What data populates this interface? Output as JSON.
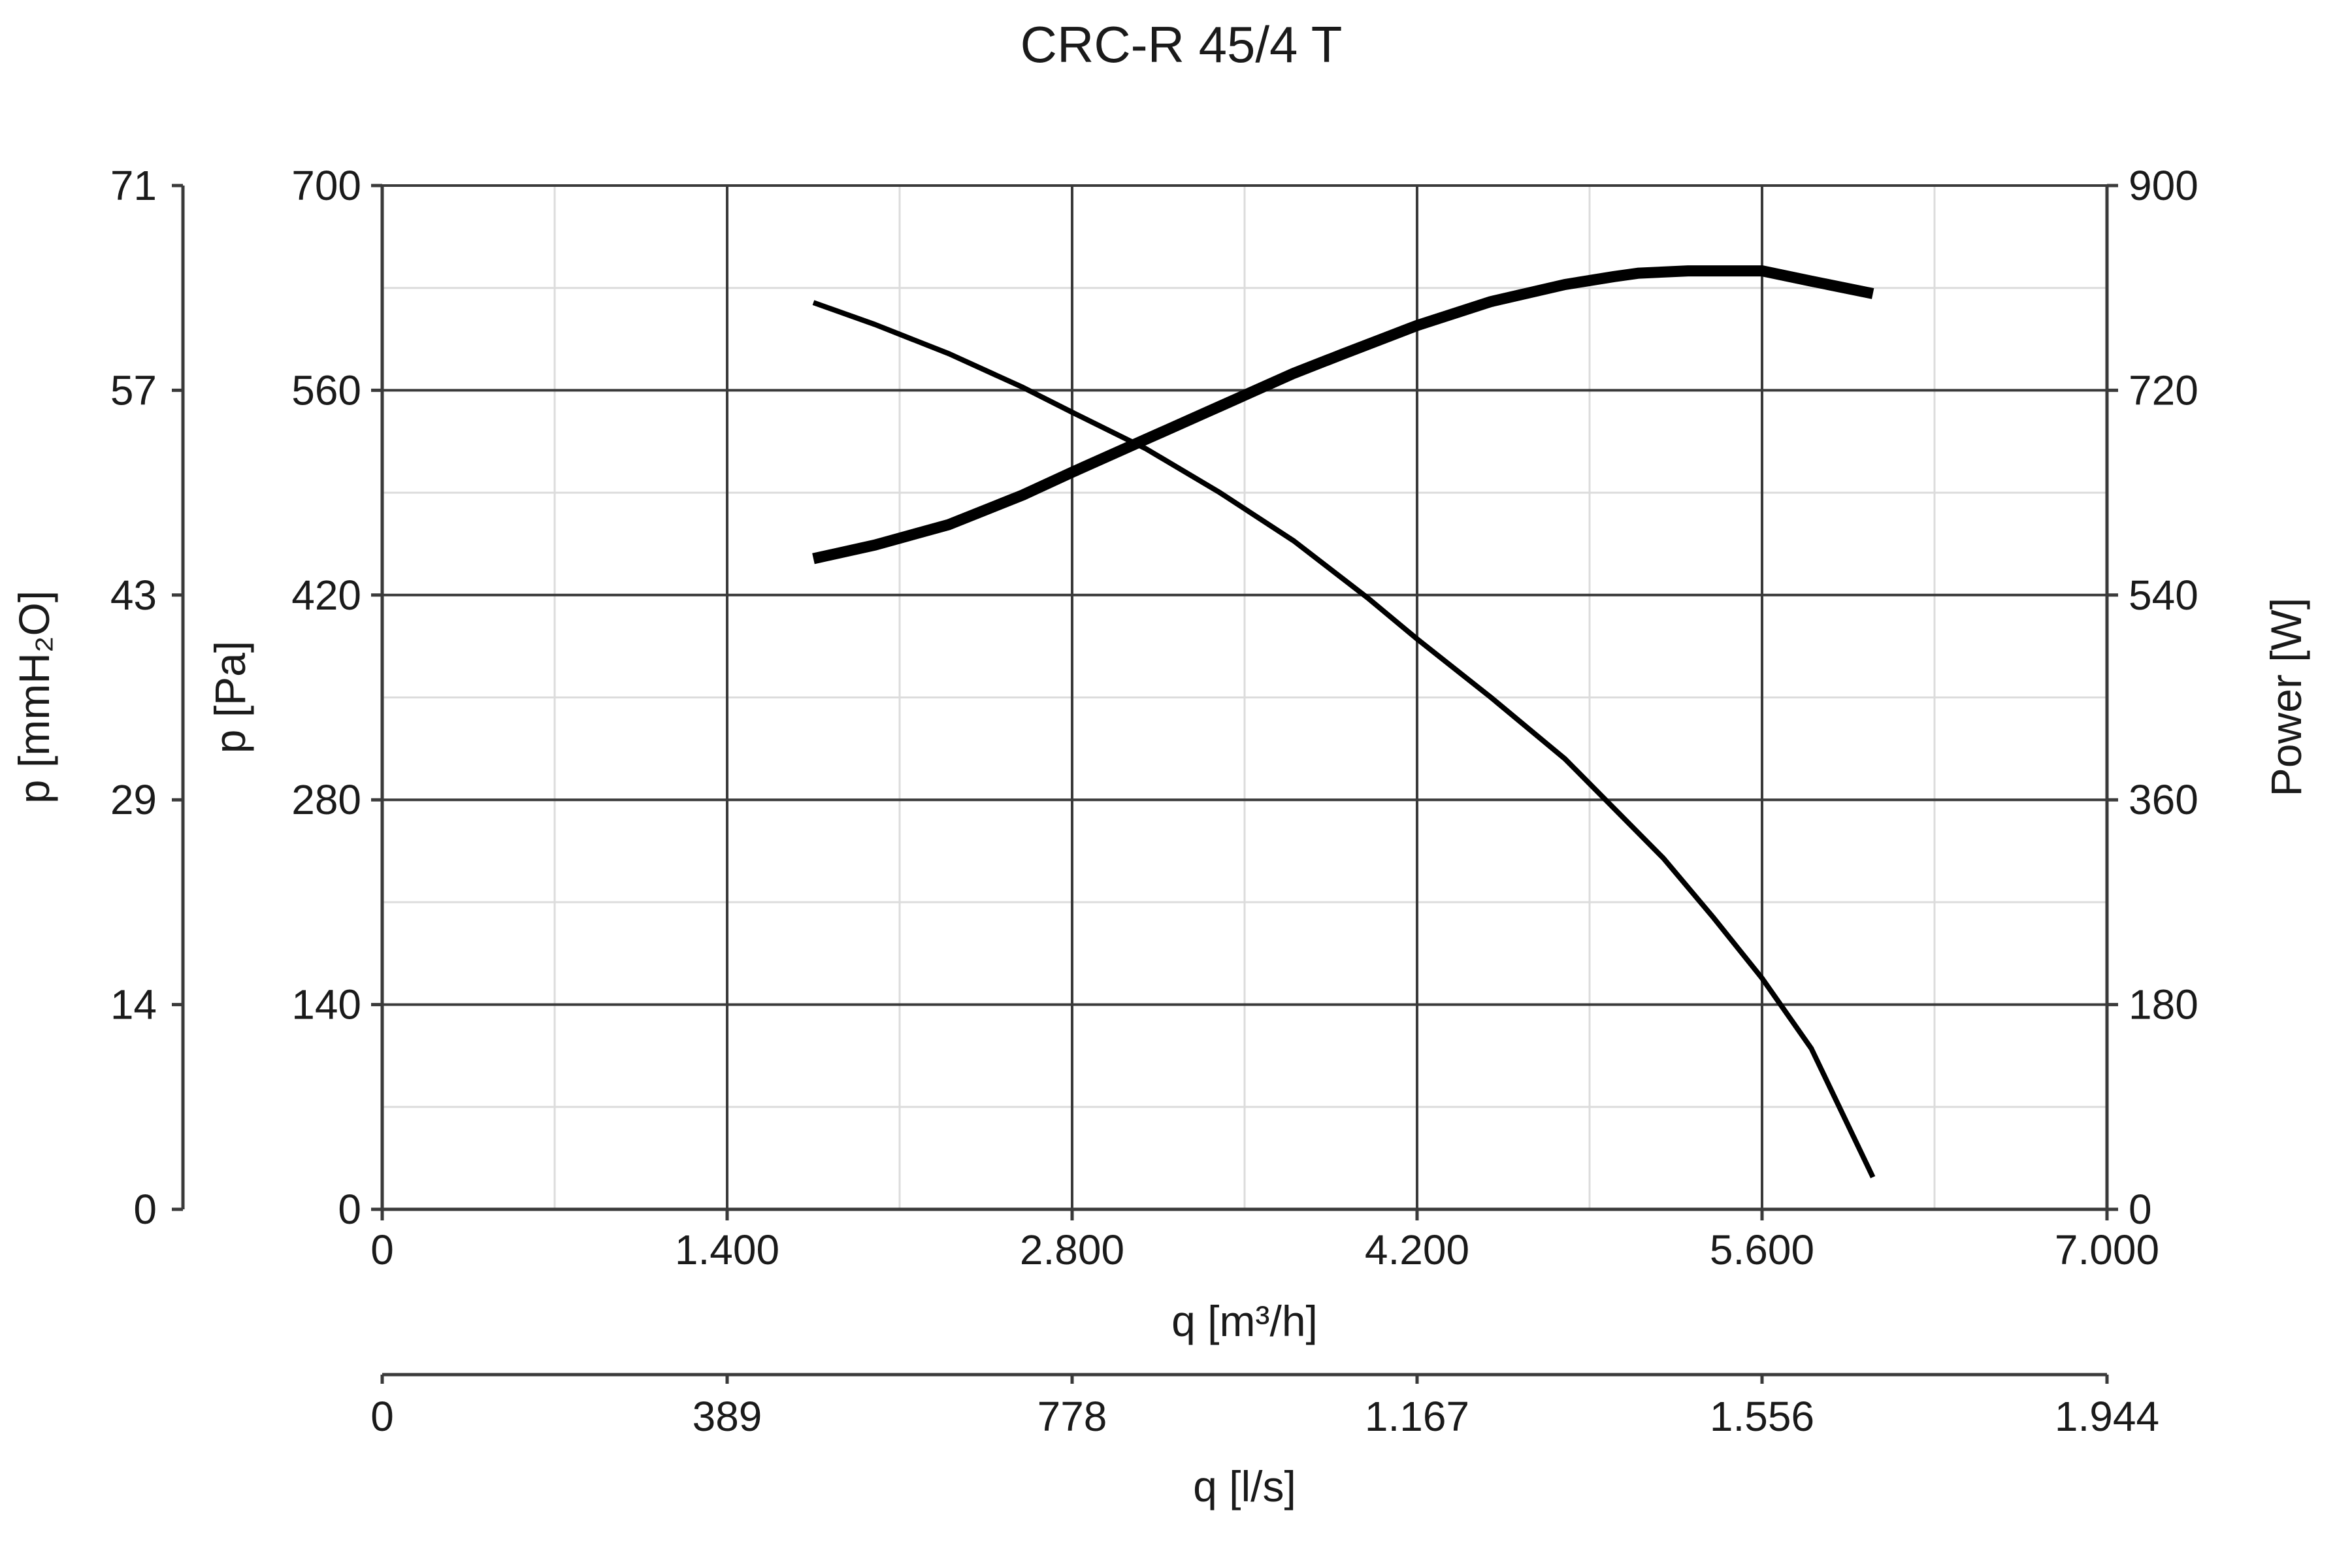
{
  "chart_data": {
    "type": "line",
    "title": "CRC-R 45/4 T",
    "xlabel": "q [m³/h]",
    "ylabel": "p [Pa]",
    "y2label": "Power [W]",
    "y_mmh2o_label": "p [mmH₂O]",
    "x2label": "q [l/s]",
    "xlim": [
      0,
      7000
    ],
    "ylim": [
      0,
      700
    ],
    "y2lim": [
      0,
      900
    ],
    "x_ticks": [
      "0",
      "1.400",
      "2.800",
      "4.200",
      "5.600",
      "7.000"
    ],
    "x_tick_values": [
      0,
      1400,
      2800,
      4200,
      5600,
      7000
    ],
    "y_ticks": [
      "0",
      "140",
      "280",
      "420",
      "560",
      "700"
    ],
    "y_tick_values": [
      0,
      140,
      280,
      420,
      560,
      700
    ],
    "y2_ticks": [
      "0",
      "180",
      "360",
      "540",
      "720",
      "900"
    ],
    "y_mmh2o_ticks": [
      "0",
      "14",
      "29",
      "43",
      "57",
      "71"
    ],
    "x2_ticks": [
      "0",
      "389",
      "778",
      "1.167",
      "1.556",
      "1.944"
    ],
    "grid": true,
    "series": [
      {
        "axis": "y",
        "x": [
          1750,
          2000,
          2300,
          2600,
          2800,
          3100,
          3400,
          3700,
          4000,
          4200,
          4500,
          4800,
          5000,
          5200,
          5400,
          5600,
          5800,
          6050
        ],
        "y": [
          620,
          605,
          585,
          562,
          545,
          520,
          490,
          457,
          418,
          390,
          350,
          308,
          274,
          240,
          200,
          158,
          110,
          22
        ]
      },
      {
        "axis": "y2",
        "x": [
          1750,
          2000,
          2300,
          2600,
          2800,
          3100,
          3400,
          3700,
          3900,
          4200,
          4500,
          4800,
          5000,
          5100,
          5300,
          5600,
          5800,
          6050
        ],
        "y": [
          572,
          584,
          602,
          628,
          648,
          677,
          706,
          735,
          752,
          777,
          798,
          813,
          820,
          823,
          825,
          825,
          816,
          805
        ]
      }
    ]
  }
}
